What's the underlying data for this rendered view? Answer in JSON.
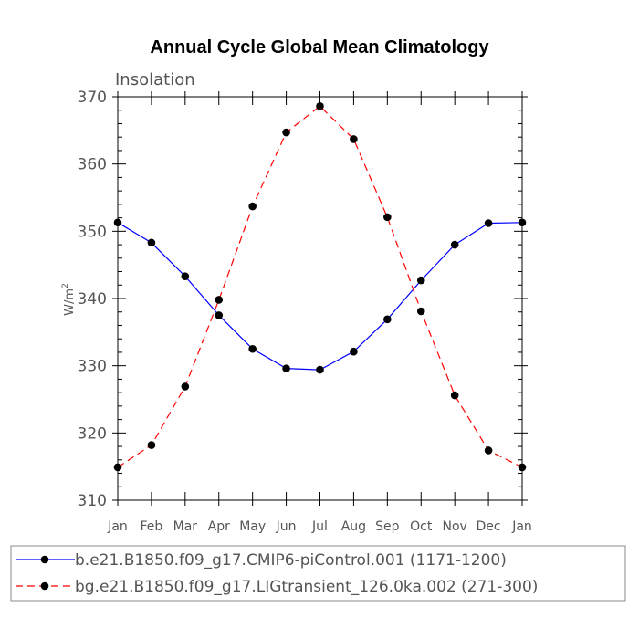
{
  "chart_data": {
    "type": "line",
    "title": "Annual Cycle Global Mean Climatology",
    "subtitle": "Insolation",
    "xlabel": "",
    "ylabel": "W/m",
    "ylabel_superscript": "2",
    "categories": [
      "Jan",
      "Feb",
      "Mar",
      "Apr",
      "May",
      "Jun",
      "Jul",
      "Aug",
      "Sep",
      "Oct",
      "Nov",
      "Dec",
      "Jan"
    ],
    "ylim": [
      310,
      370
    ],
    "yticks": [
      310,
      320,
      330,
      340,
      350,
      360,
      370
    ],
    "grid": false,
    "legend_position": "bottom",
    "series": [
      {
        "name": "b.e21.B1850.f09_g17.CMIP6-piControl.001 (1171-1200)",
        "color": "#0000ff",
        "dash": "solid",
        "values": [
          351.3,
          348.3,
          343.3,
          337.5,
          332.5,
          329.6,
          329.4,
          332.1,
          336.9,
          342.7,
          348.0,
          351.2,
          351.3
        ]
      },
      {
        "name": "bg.e21.B1850.f09_g17.LIGtransient_126.0ka.002 (271-300)",
        "color": "#ff0000",
        "dash": "dashed",
        "values": [
          314.9,
          318.2,
          326.9,
          339.8,
          353.7,
          364.7,
          368.6,
          363.7,
          352.1,
          338.1,
          325.6,
          317.4,
          314.9
        ]
      }
    ]
  }
}
